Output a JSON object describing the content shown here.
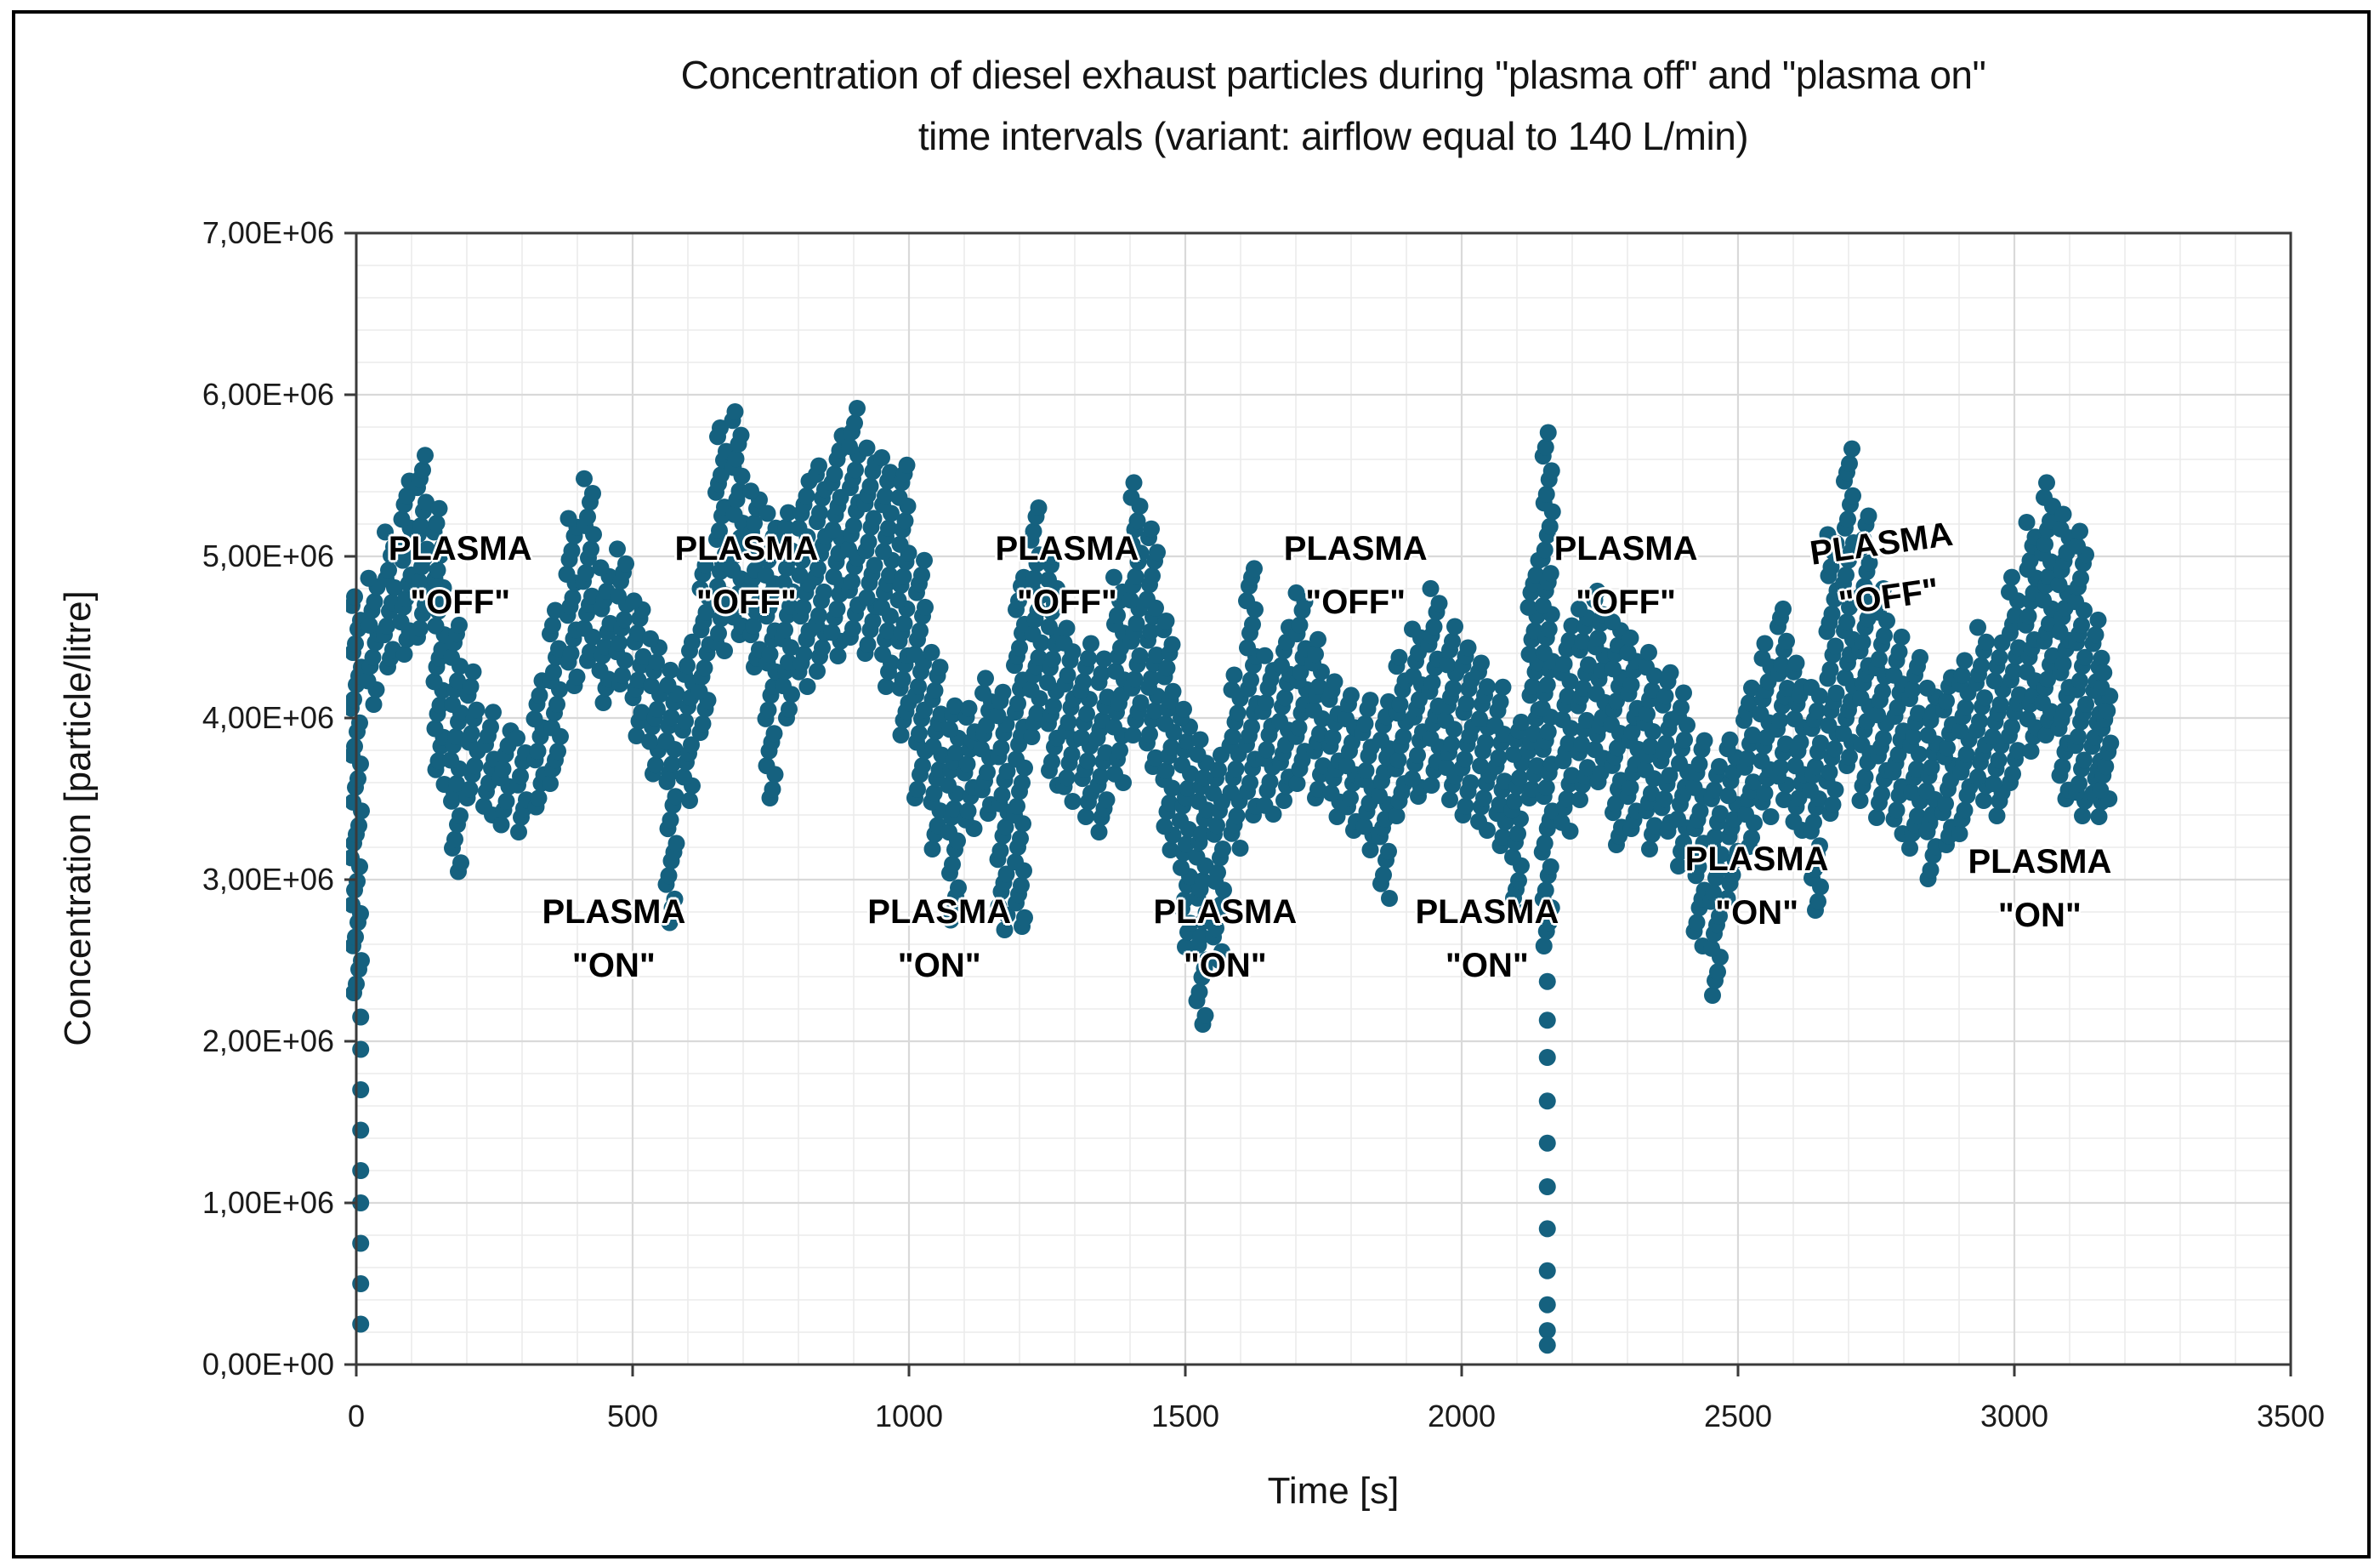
{
  "figure": {
    "title_line1": "Concentration of diesel exhaust particles during \"plasma off\" and \"plasma on\"",
    "title_line2": "time intervals (variant: airflow equal to 140 L/min)"
  },
  "axes": {
    "x": {
      "label": "Time [s]",
      "min": 0,
      "max": 3500,
      "major_step": 500,
      "minor_step": 100,
      "ticks": [
        "0",
        "500",
        "1000",
        "1500",
        "2000",
        "2500",
        "3000",
        "3500"
      ],
      "tick_values": [
        0,
        500,
        1000,
        1500,
        2000,
        2500,
        3000,
        3500
      ]
    },
    "y": {
      "label": "Concentration [particle/litre]",
      "min": 0,
      "max": 7000000,
      "major_step": 1000000,
      "minor_step": 200000,
      "ticks": [
        "7,00E+06",
        "6,00E+06",
        "5,00E+06",
        "4,00E+06",
        "3,00E+06",
        "2,00E+06",
        "1,00E+06",
        "0,00E+00"
      ],
      "tick_values_e6": [
        7,
        6,
        5,
        4,
        3,
        2,
        1,
        0
      ]
    }
  },
  "annotations": [
    {
      "line1": "PLASMA",
      "line2": "\"OFF\"",
      "t": 188,
      "conc_e6": 4.88,
      "rot": 0
    },
    {
      "line1": "PLASMA",
      "line2": "\"OFF\"",
      "t": 706,
      "conc_e6": 4.88,
      "rot": 0
    },
    {
      "line1": "PLASMA",
      "line2": "\"OFF\"",
      "t": 1286,
      "conc_e6": 4.88,
      "rot": 0
    },
    {
      "line1": "PLASMA",
      "line2": "\"OFF\"",
      "t": 1808,
      "conc_e6": 4.88,
      "rot": 0
    },
    {
      "line1": "PLASMA",
      "line2": "\"OFF\"",
      "t": 2297,
      "conc_e6": 4.88,
      "rot": 0
    },
    {
      "line1": "PLASMA",
      "line2": "\"OFF\"",
      "t": 2766,
      "conc_e6": 4.91,
      "rot": -8
    },
    {
      "line1": "PLASMA",
      "line2": "\"ON\"",
      "t": 466,
      "conc_e6": 2.63,
      "rot": 0
    },
    {
      "line1": "PLASMA",
      "line2": "\"ON\"",
      "t": 1055,
      "conc_e6": 2.63,
      "rot": 0
    },
    {
      "line1": "PLASMA",
      "line2": "\"ON\"",
      "t": 1572,
      "conc_e6": 2.63,
      "rot": 0
    },
    {
      "line1": "PLASMA",
      "line2": "\"ON\"",
      "t": 2046,
      "conc_e6": 2.63,
      "rot": 0
    },
    {
      "line1": "PLASMA",
      "line2": "\"ON\"",
      "t": 2534,
      "conc_e6": 2.96,
      "rot": 0
    },
    {
      "line1": "PLASMA",
      "line2": "\"ON\"",
      "t": 3046,
      "conc_e6": 2.94,
      "rot": 0
    }
  ],
  "colors": {
    "point": "#15617F",
    "grid_minor": "#ebebeb",
    "grid_major": "#d9d9d9",
    "plot_border": "#3a3a3a",
    "text": "#141414"
  },
  "chart_data": {
    "type": "scatter",
    "title": "Concentration of diesel exhaust particles during \"plasma off\" and \"plasma on\" time intervals (variant: airflow equal to 140 L/min)",
    "xlabel": "Time [s]",
    "ylabel": "Concentration [particle/litre]",
    "xlim": [
      0,
      3500
    ],
    "ylim": [
      0,
      7000000
    ],
    "series": [
      {
        "name": "particle concentration",
        "color": "#15617F",
        "marker": "circle"
      }
    ],
    "values_unit": "1e6 particle/litre",
    "envelope_t_lo_hi_e6": [
      [
        0,
        2.3,
        4.75
      ],
      [
        30,
        4.1,
        4.9
      ],
      [
        60,
        4.3,
        5.2
      ],
      [
        90,
        4.4,
        5.5
      ],
      [
        120,
        4.5,
        5.65
      ],
      [
        150,
        3.6,
        5.3
      ],
      [
        180,
        3.05,
        4.6
      ],
      [
        210,
        3.5,
        4.3
      ],
      [
        240,
        3.4,
        4.05
      ],
      [
        270,
        3.35,
        3.95
      ],
      [
        300,
        3.3,
        3.9
      ],
      [
        330,
        3.45,
        4.25
      ],
      [
        360,
        3.6,
        4.7
      ],
      [
        390,
        4.2,
        5.3
      ],
      [
        420,
        4.35,
        5.5
      ],
      [
        450,
        4.1,
        5.0
      ],
      [
        480,
        4.2,
        5.05
      ],
      [
        510,
        3.9,
        4.75
      ],
      [
        540,
        3.65,
        4.5
      ],
      [
        570,
        2.75,
        4.3
      ],
      [
        600,
        3.5,
        4.5
      ],
      [
        630,
        3.9,
        5.0
      ],
      [
        660,
        4.4,
        5.8
      ],
      [
        690,
        4.5,
        5.95
      ],
      [
        720,
        4.3,
        5.45
      ],
      [
        750,
        3.5,
        5.3
      ],
      [
        780,
        4.0,
        5.3
      ],
      [
        810,
        4.2,
        5.5
      ],
      [
        840,
        4.3,
        5.6
      ],
      [
        870,
        4.4,
        5.75
      ],
      [
        900,
        4.5,
        5.9
      ],
      [
        930,
        4.4,
        5.7
      ],
      [
        960,
        4.2,
        5.6
      ],
      [
        990,
        3.9,
        5.6
      ],
      [
        1020,
        3.5,
        5.0
      ],
      [
        1050,
        3.2,
        4.4
      ],
      [
        1080,
        2.75,
        4.1
      ],
      [
        1110,
        3.3,
        4.1
      ],
      [
        1140,
        3.4,
        4.3
      ],
      [
        1170,
        2.7,
        4.2
      ],
      [
        1200,
        2.7,
        4.9
      ],
      [
        1230,
        3.9,
        5.35
      ],
      [
        1260,
        3.6,
        5.0
      ],
      [
        1290,
        3.5,
        4.6
      ],
      [
        1320,
        3.4,
        4.5
      ],
      [
        1350,
        3.3,
        4.4
      ],
      [
        1380,
        3.6,
        4.9
      ],
      [
        1410,
        3.9,
        5.5
      ],
      [
        1440,
        3.7,
        5.2
      ],
      [
        1470,
        3.2,
        4.6
      ],
      [
        1500,
        2.6,
        4.1
      ],
      [
        1530,
        2.1,
        3.9
      ],
      [
        1560,
        2.5,
        3.8
      ],
      [
        1590,
        3.2,
        4.3
      ],
      [
        1620,
        3.4,
        4.95
      ],
      [
        1650,
        3.4,
        4.4
      ],
      [
        1680,
        3.5,
        4.6
      ],
      [
        1710,
        3.6,
        4.85
      ],
      [
        1740,
        3.5,
        4.5
      ],
      [
        1770,
        3.4,
        4.3
      ],
      [
        1800,
        3.3,
        4.2
      ],
      [
        1830,
        3.2,
        4.15
      ],
      [
        1860,
        2.9,
        4.1
      ],
      [
        1890,
        3.4,
        4.4
      ],
      [
        1920,
        3.5,
        4.6
      ],
      [
        1950,
        3.6,
        4.8
      ],
      [
        1980,
        3.5,
        4.6
      ],
      [
        2010,
        3.4,
        4.5
      ],
      [
        2040,
        3.3,
        4.4
      ],
      [
        2070,
        3.2,
        4.2
      ],
      [
        2100,
        2.8,
        4.0
      ],
      [
        2130,
        3.5,
        5.0
      ],
      [
        2155,
        2.6,
        5.75
      ],
      [
        2190,
        3.3,
        4.6
      ],
      [
        2220,
        3.5,
        4.7
      ],
      [
        2250,
        3.6,
        4.8
      ],
      [
        2280,
        3.2,
        4.6
      ],
      [
        2310,
        3.3,
        4.5
      ],
      [
        2340,
        3.2,
        4.4
      ],
      [
        2370,
        3.3,
        4.3
      ],
      [
        2400,
        3.1,
        4.2
      ],
      [
        2430,
        2.6,
        3.9
      ],
      [
        2460,
        2.3,
        3.7
      ],
      [
        2490,
        2.9,
        3.9
      ],
      [
        2520,
        3.2,
        4.2
      ],
      [
        2550,
        3.4,
        4.5
      ],
      [
        2580,
        3.5,
        4.7
      ],
      [
        2610,
        3.3,
        4.4
      ],
      [
        2640,
        2.8,
        4.2
      ],
      [
        2670,
        3.4,
        5.2
      ],
      [
        2700,
        3.7,
        5.7
      ],
      [
        2730,
        3.5,
        5.3
      ],
      [
        2760,
        3.4,
        4.8
      ],
      [
        2790,
        3.3,
        4.5
      ],
      [
        2820,
        3.2,
        4.4
      ],
      [
        2850,
        3.0,
        4.2
      ],
      [
        2880,
        3.2,
        4.3
      ],
      [
        2910,
        3.3,
        4.4
      ],
      [
        2940,
        3.5,
        4.6
      ],
      [
        2970,
        3.4,
        4.5
      ],
      [
        3000,
        3.6,
        4.9
      ],
      [
        3030,
        3.8,
        5.2
      ],
      [
        3060,
        3.9,
        5.45
      ],
      [
        3090,
        3.5,
        5.3
      ],
      [
        3120,
        3.4,
        5.2
      ],
      [
        3150,
        3.4,
        4.6
      ],
      [
        3165,
        3.5,
        4.3
      ]
    ],
    "sparse_points_t_e6": [
      [
        8,
        0.25
      ],
      [
        8,
        0.5
      ],
      [
        8,
        0.75
      ],
      [
        8,
        1.0
      ],
      [
        8,
        1.2
      ],
      [
        8,
        1.45
      ],
      [
        8,
        1.7
      ],
      [
        8,
        1.95
      ],
      [
        8,
        2.15
      ],
      [
        2155,
        2.37
      ],
      [
        2155,
        2.13
      ],
      [
        2155,
        1.9
      ],
      [
        2155,
        1.63
      ],
      [
        2155,
        1.37
      ],
      [
        2155,
        1.1
      ],
      [
        2155,
        0.84
      ],
      [
        2155,
        0.58
      ],
      [
        2155,
        0.37
      ],
      [
        2155,
        0.21
      ],
      [
        2155,
        0.12
      ]
    ]
  }
}
